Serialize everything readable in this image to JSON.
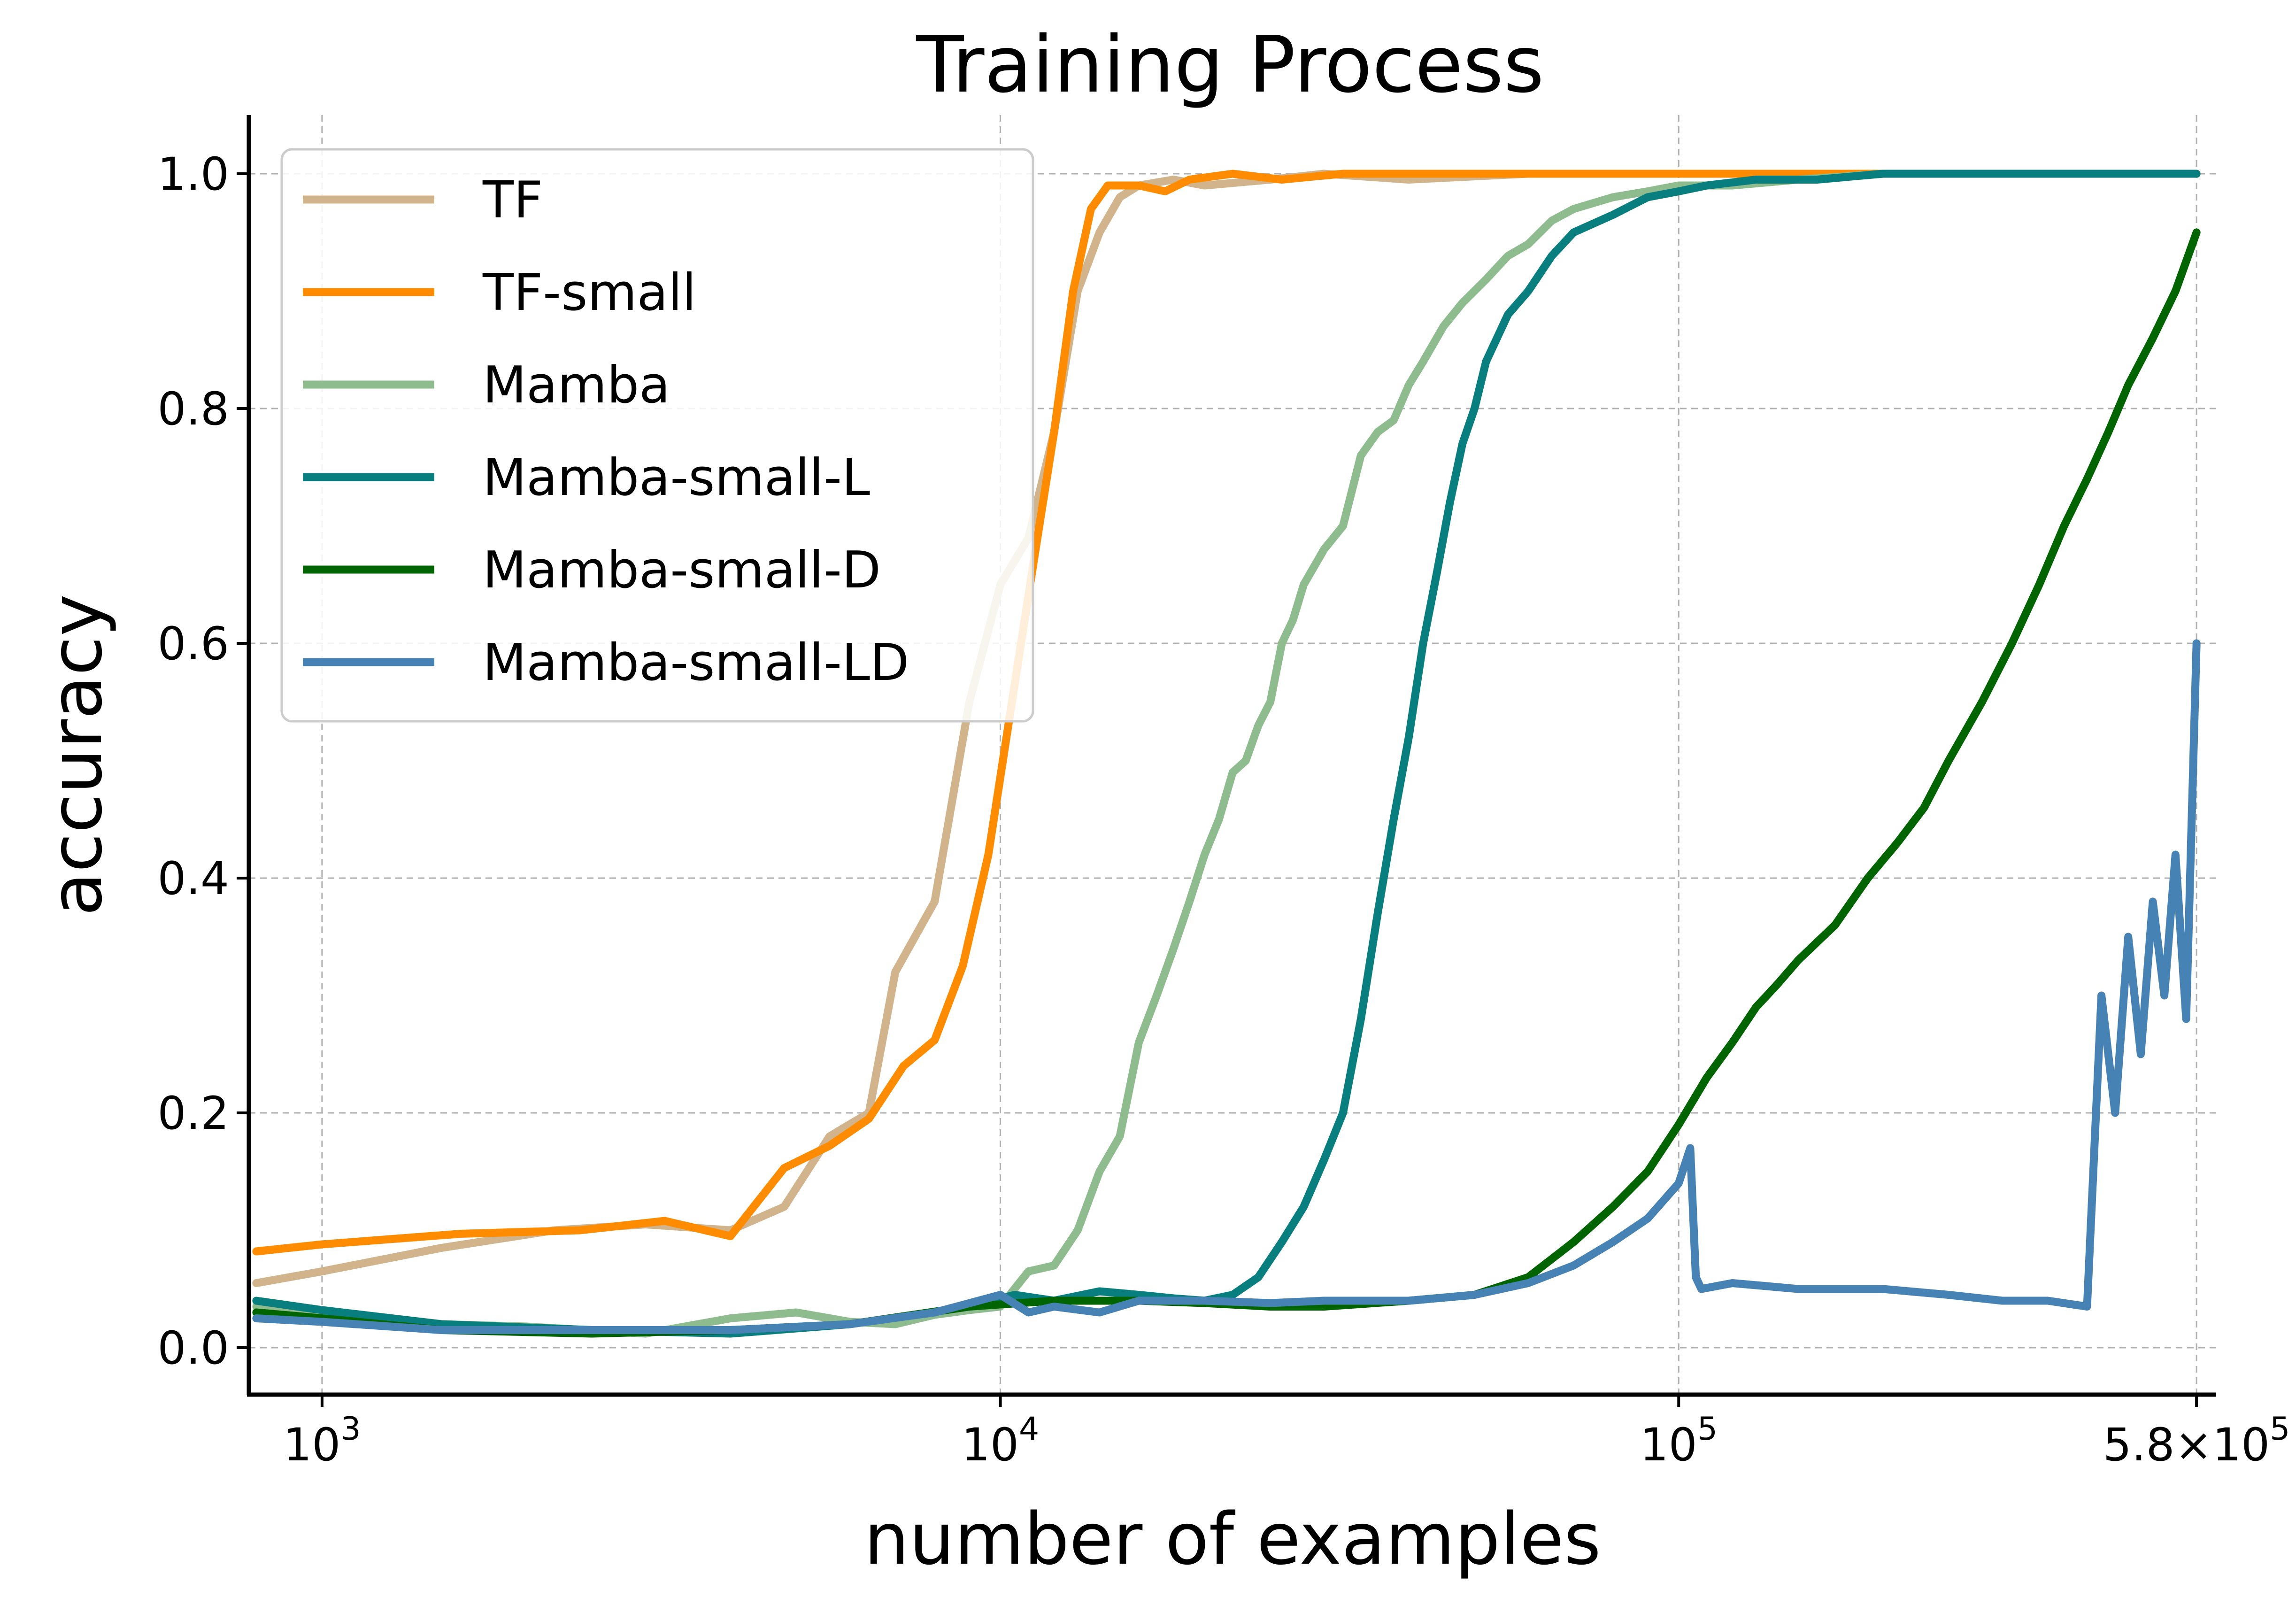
{
  "chart_data": {
    "type": "line",
    "title": "Training Process",
    "xlabel": "number of examples",
    "ylabel": "accuracy",
    "xscale": "log",
    "xlim": [
      780,
      620000
    ],
    "ylim": [
      -0.04,
      1.05
    ],
    "grid": true,
    "legend_position": "top-left",
    "xticks": [
      {
        "value": 1000,
        "base": "10",
        "exp": "3"
      },
      {
        "value": 10000,
        "base": "10",
        "exp": "4"
      },
      {
        "value": 100000,
        "base": "10",
        "exp": "5"
      },
      {
        "value": 580000,
        "base": "5.8×10",
        "exp": "5"
      }
    ],
    "yticks": [
      {
        "value": 0.0,
        "label": "0.0"
      },
      {
        "value": 0.2,
        "label": "0.2"
      },
      {
        "value": 0.4,
        "label": "0.4"
      },
      {
        "value": 0.6,
        "label": "0.6"
      },
      {
        "value": 0.8,
        "label": "0.8"
      },
      {
        "value": 1.0,
        "label": "1.0"
      }
    ],
    "series": [
      {
        "name": "TF",
        "color": "#d2b48c",
        "x": [
          800,
          1000,
          1500,
          2200,
          3000,
          4000,
          4800,
          5600,
          6400,
          7000,
          8000,
          9000,
          10000,
          11000,
          12000,
          13000,
          14000,
          15000,
          16000,
          18000,
          20000,
          25000,
          30000,
          40000,
          60000,
          100000,
          200000,
          580000
        ],
        "y": [
          0.055,
          0.065,
          0.085,
          0.1,
          0.105,
          0.1,
          0.12,
          0.18,
          0.2,
          0.32,
          0.38,
          0.55,
          0.65,
          0.69,
          0.78,
          0.9,
          0.95,
          0.98,
          0.99,
          0.995,
          0.99,
          0.995,
          1.0,
          0.995,
          1.0,
          1.0,
          1.0,
          1.0
        ]
      },
      {
        "name": "TF-small",
        "color": "#ff8c00",
        "x": [
          800,
          1000,
          1600,
          2400,
          3200,
          4000,
          4800,
          5600,
          6400,
          7200,
          8000,
          8800,
          9600,
          10400,
          11200,
          12000,
          12800,
          13600,
          14400,
          15200,
          16000,
          17500,
          19000,
          22000,
          26000,
          32000,
          40000,
          60000,
          100000,
          200000,
          580000
        ],
        "y": [
          0.082,
          0.088,
          0.097,
          0.1,
          0.108,
          0.095,
          0.153,
          0.172,
          0.195,
          0.24,
          0.262,
          0.325,
          0.42,
          0.55,
          0.67,
          0.78,
          0.9,
          0.97,
          0.99,
          0.99,
          0.99,
          0.985,
          0.995,
          1.0,
          0.995,
          1.0,
          1.0,
          1.0,
          1.0,
          1.0,
          1.0
        ]
      },
      {
        "name": "Mamba",
        "color": "#8fbc8f",
        "x": [
          800,
          1000,
          1500,
          2000,
          3000,
          4000,
          5000,
          6000,
          7000,
          8000,
          9000,
          10000,
          11000,
          12000,
          13000,
          14000,
          15000,
          16000,
          17000,
          18000,
          19000,
          20000,
          21000,
          22000,
          23000,
          24000,
          25000,
          26000,
          27000,
          28000,
          30000,
          32000,
          34000,
          36000,
          38000,
          40000,
          42000,
          45000,
          48000,
          52000,
          56000,
          60000,
          65000,
          70000,
          80000,
          90000,
          100000,
          120000,
          150000,
          200000,
          300000,
          580000
        ],
        "y": [
          0.035,
          0.028,
          0.02,
          0.018,
          0.012,
          0.025,
          0.03,
          0.022,
          0.02,
          0.028,
          0.032,
          0.035,
          0.065,
          0.07,
          0.1,
          0.15,
          0.18,
          0.26,
          0.3,
          0.34,
          0.38,
          0.42,
          0.45,
          0.49,
          0.5,
          0.53,
          0.55,
          0.6,
          0.62,
          0.65,
          0.68,
          0.7,
          0.76,
          0.78,
          0.79,
          0.82,
          0.84,
          0.87,
          0.89,
          0.91,
          0.93,
          0.94,
          0.96,
          0.97,
          0.98,
          0.985,
          0.99,
          0.99,
          0.995,
          1.0,
          1.0,
          1.0
        ]
      },
      {
        "name": "Mamba-small-L",
        "color": "#087e7e",
        "x": [
          800,
          1000,
          1500,
          2500,
          4000,
          6000,
          9000,
          10500,
          12000,
          14000,
          16000,
          18000,
          20000,
          22000,
          24000,
          26000,
          28000,
          30000,
          32000,
          34000,
          36000,
          38000,
          40000,
          42000,
          44000,
          46000,
          48000,
          50000,
          52000,
          56000,
          60000,
          65000,
          70000,
          80000,
          90000,
          100000,
          110000,
          130000,
          160000,
          200000,
          300000,
          580000
        ],
        "y": [
          0.04,
          0.032,
          0.02,
          0.015,
          0.012,
          0.02,
          0.035,
          0.045,
          0.04,
          0.048,
          0.045,
          0.042,
          0.04,
          0.045,
          0.06,
          0.09,
          0.12,
          0.16,
          0.2,
          0.28,
          0.37,
          0.45,
          0.52,
          0.6,
          0.66,
          0.72,
          0.77,
          0.8,
          0.84,
          0.88,
          0.9,
          0.93,
          0.95,
          0.965,
          0.98,
          0.985,
          0.99,
          0.995,
          0.995,
          1.0,
          1.0,
          1.0
        ]
      },
      {
        "name": "Mamba-small-D",
        "color": "#006400",
        "x": [
          800,
          1000,
          1500,
          2500,
          4000,
          6000,
          9000,
          12000,
          16000,
          20000,
          25000,
          30000,
          40000,
          50000,
          60000,
          70000,
          80000,
          90000,
          100000,
          110000,
          120000,
          130000,
          140000,
          150000,
          170000,
          190000,
          210000,
          230000,
          250000,
          280000,
          310000,
          340000,
          370000,
          400000,
          430000,
          460000,
          500000,
          540000,
          580000
        ],
        "y": [
          0.03,
          0.025,
          0.015,
          0.012,
          0.015,
          0.02,
          0.035,
          0.04,
          0.04,
          0.038,
          0.035,
          0.035,
          0.04,
          0.045,
          0.06,
          0.09,
          0.12,
          0.15,
          0.19,
          0.23,
          0.26,
          0.29,
          0.31,
          0.33,
          0.36,
          0.4,
          0.43,
          0.46,
          0.5,
          0.55,
          0.6,
          0.65,
          0.7,
          0.74,
          0.78,
          0.82,
          0.86,
          0.9,
          0.95
        ]
      },
      {
        "name": "Mamba-small-LD",
        "color": "#4682b4",
        "x": [
          800,
          1000,
          1500,
          2500,
          4000,
          6000,
          8000,
          10000,
          11000,
          12000,
          14000,
          16000,
          20000,
          25000,
          30000,
          40000,
          50000,
          60000,
          70000,
          80000,
          90000,
          100000,
          104000,
          106000,
          108000,
          120000,
          150000,
          200000,
          250000,
          300000,
          350000,
          400000,
          420000,
          440000,
          460000,
          480000,
          500000,
          520000,
          540000,
          560000,
          580000
        ],
        "y": [
          0.025,
          0.022,
          0.015,
          0.015,
          0.015,
          0.02,
          0.03,
          0.045,
          0.03,
          0.035,
          0.03,
          0.04,
          0.04,
          0.038,
          0.04,
          0.04,
          0.045,
          0.055,
          0.07,
          0.09,
          0.11,
          0.14,
          0.17,
          0.06,
          0.05,
          0.055,
          0.05,
          0.05,
          0.045,
          0.04,
          0.04,
          0.035,
          0.3,
          0.2,
          0.35,
          0.25,
          0.38,
          0.3,
          0.42,
          0.28,
          0.6
        ]
      }
    ]
  }
}
